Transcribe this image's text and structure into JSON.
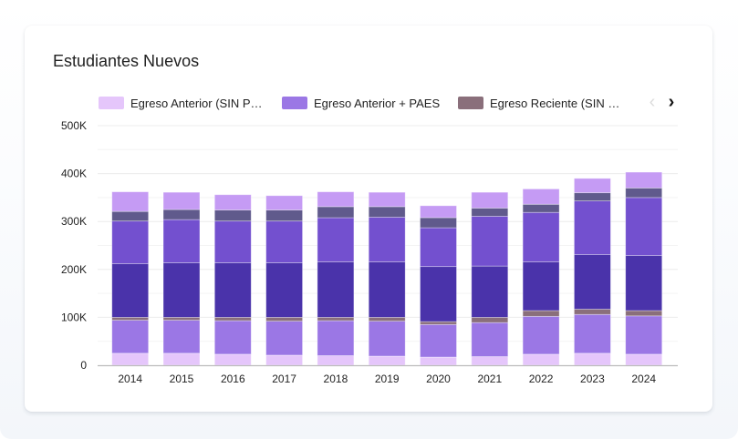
{
  "card": {
    "title": "Estudiantes Nuevos"
  },
  "legend": {
    "items": [
      {
        "label": "Egreso Anterior (SIN P…",
        "color": "#e5c6fb"
      },
      {
        "label": "Egreso Anterior + PAES",
        "color": "#9b77e5"
      },
      {
        "label": "Egreso Reciente (SIN …",
        "color": "#8a6f7b"
      }
    ],
    "prev_icon": "chevron-left-icon",
    "next_icon": "chevron-right-icon",
    "prev_glyph": "‹",
    "next_glyph": "›"
  },
  "chart_data": {
    "type": "bar",
    "stacked": true,
    "title": "Estudiantes Nuevos",
    "xlabel": "",
    "ylabel": "",
    "ylim": [
      0,
      500000
    ],
    "y_ticks": [
      0,
      100000,
      200000,
      300000,
      400000,
      500000
    ],
    "y_tick_labels": [
      "0",
      "100K",
      "200K",
      "300K",
      "400K",
      "500K"
    ],
    "minor_gridlines": true,
    "legend_position": "top",
    "categories": [
      "2014",
      "2015",
      "2016",
      "2017",
      "2018",
      "2019",
      "2020",
      "2021",
      "2022",
      "2023",
      "2024"
    ],
    "series": [
      {
        "name": "Egreso Anterior (SIN P…",
        "color": "#e5c6fb",
        "values": [
          25000,
          25000,
          23000,
          21000,
          20000,
          19000,
          17000,
          18000,
          23000,
          25000,
          23000
        ]
      },
      {
        "name": "Egreso Anterior + PAES",
        "color": "#9b77e5",
        "values": [
          69000,
          69000,
          70000,
          71000,
          73000,
          73000,
          68000,
          71000,
          79000,
          81000,
          80000
        ]
      },
      {
        "name": "Egreso Reciente (SIN …",
        "color": "#8a6f7b",
        "values": [
          6000,
          6000,
          7000,
          8000,
          7000,
          8000,
          6000,
          11000,
          12000,
          11000,
          11000
        ]
      },
      {
        "name": "",
        "color": "#4a33aa",
        "values": [
          112000,
          114000,
          114000,
          114000,
          116000,
          116000,
          115000,
          107000,
          102000,
          114000,
          115000
        ]
      },
      {
        "name": "",
        "color": "#7350cf",
        "values": [
          89000,
          90000,
          87000,
          87000,
          92000,
          93000,
          81000,
          104000,
          103000,
          112000,
          121000
        ]
      },
      {
        "name": "",
        "color": "#605a8c",
        "values": [
          20000,
          21000,
          23000,
          23000,
          23000,
          22000,
          21000,
          17000,
          17000,
          17000,
          20000
        ]
      },
      {
        "name": "",
        "color": "#c59bf4",
        "values": [
          41000,
          36000,
          32000,
          30000,
          31000,
          30000,
          25000,
          33000,
          32000,
          30000,
          33000
        ]
      }
    ]
  }
}
